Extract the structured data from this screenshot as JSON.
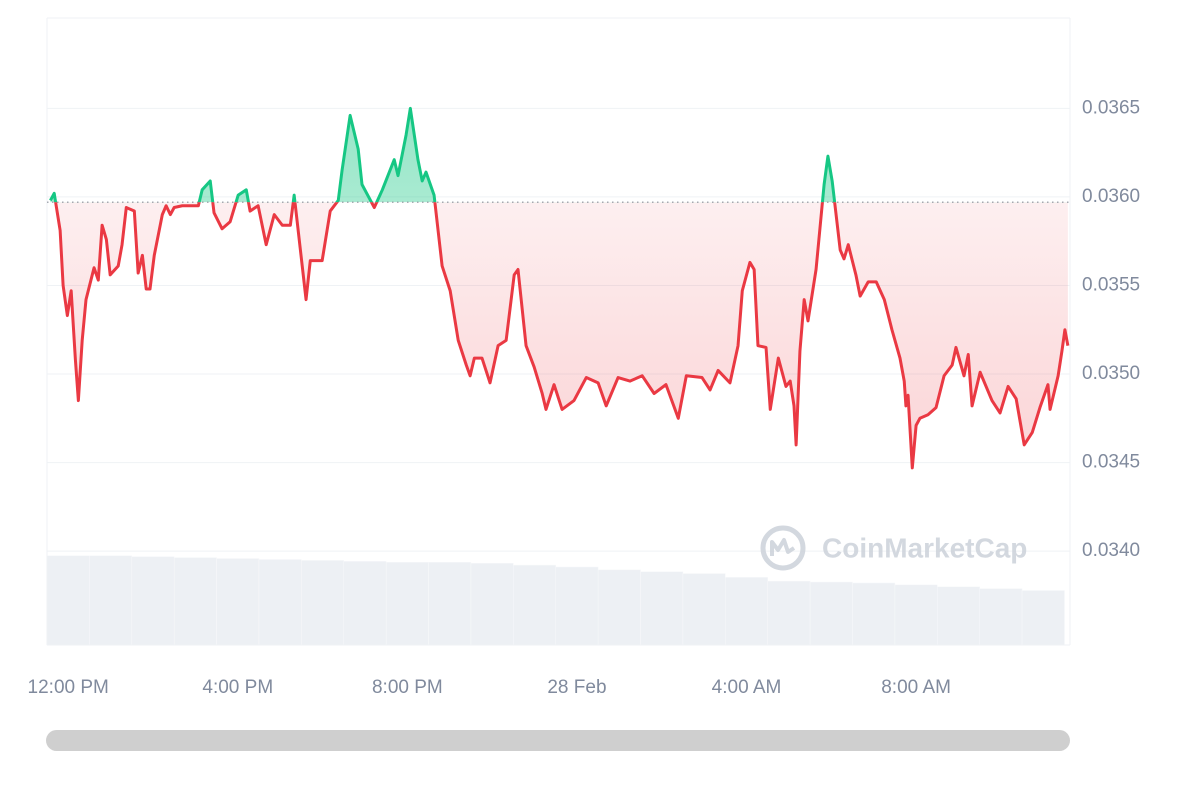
{
  "chart_data": {
    "type": "line",
    "watermark": "CoinMarketCap",
    "color_up": "#16c784",
    "color_down": "#ea3943",
    "baseline": 0.03597,
    "grid": true,
    "xlim": [
      -0.5,
      23.63
    ],
    "ylim": [
      0.03347,
      0.03701
    ],
    "xticks": [
      {
        "value": 0,
        "label": "12:00 PM"
      },
      {
        "value": 4,
        "label": "4:00 PM"
      },
      {
        "value": 8,
        "label": "8:00 PM"
      },
      {
        "value": 12,
        "label": "28 Feb"
      },
      {
        "value": 16,
        "label": "4:00 AM"
      },
      {
        "value": 20,
        "label": "8:00 AM"
      }
    ],
    "yticks": [
      {
        "value": 0.034,
        "label": "0.0340"
      },
      0.0345,
      {
        "value": 0.035,
        "label": "0.0350"
      },
      0.0355,
      {
        "value": 0.036,
        "label": "0.0360"
      },
      0.0365
    ],
    "x": [
      -0.42,
      -0.33,
      -0.19,
      -0.12,
      -0.02,
      0.07,
      0.17,
      0.24,
      0.33,
      0.42,
      0.61,
      0.71,
      0.8,
      0.9,
      0.99,
      1.18,
      1.27,
      1.37,
      1.56,
      1.65,
      1.75,
      1.84,
      1.93,
      2.03,
      2.22,
      2.31,
      2.41,
      2.5,
      2.69,
      2.88,
      3.07,
      3.16,
      3.35,
      3.44,
      3.63,
      3.82,
      4.01,
      4.2,
      4.29,
      4.48,
      4.67,
      4.86,
      5.05,
      5.24,
      5.33,
      5.52,
      5.61,
      5.71,
      5.99,
      6.18,
      6.37,
      6.46,
      6.65,
      6.84,
      6.93,
      7.22,
      7.41,
      7.69,
      7.78,
      7.97,
      8.07,
      8.25,
      8.35,
      8.44,
      8.63,
      8.82,
      9.01,
      9.2,
      9.39,
      9.48,
      9.58,
      9.76,
      9.95,
      10.14,
      10.33,
      10.52,
      10.61,
      10.8,
      10.99,
      11.18,
      11.27,
      11.46,
      11.65,
      11.93,
      12.22,
      12.5,
      12.69,
      12.97,
      13.25,
      13.54,
      13.82,
      14.1,
      14.39,
      14.58,
      14.95,
      15.14,
      15.33,
      15.61,
      15.8,
      15.9,
      16.08,
      16.18,
      16.27,
      16.46,
      16.56,
      16.75,
      16.93,
      17.03,
      17.12,
      17.17,
      17.26,
      17.36,
      17.45,
      17.64,
      17.83,
      17.92,
      18.02,
      18.21,
      18.3,
      18.4,
      18.58,
      18.68,
      18.87,
      19.06,
      19.25,
      19.43,
      19.62,
      19.72,
      19.76,
      19.81,
      19.91,
      20.0,
      20.09,
      20.28,
      20.47,
      20.66,
      20.85,
      20.94,
      21.13,
      21.23,
      21.32,
      21.51,
      21.79,
      21.98,
      22.17,
      22.36,
      22.55,
      22.74,
      22.92,
      23.11,
      23.16,
      23.35,
      23.44,
      23.51,
      23.58
    ],
    "values": [
      0.03598,
      0.03602,
      0.03581,
      0.0355,
      0.03533,
      0.03547,
      0.03508,
      0.03485,
      0.03519,
      0.03542,
      0.0356,
      0.03553,
      0.03584,
      0.03576,
      0.03556,
      0.03561,
      0.03573,
      0.03594,
      0.03592,
      0.03557,
      0.03567,
      0.03548,
      0.03548,
      0.03567,
      0.0359,
      0.03595,
      0.0359,
      0.03594,
      0.03595,
      0.03595,
      0.03595,
      0.03604,
      0.03609,
      0.03591,
      0.03582,
      0.03586,
      0.03601,
      0.03604,
      0.03592,
      0.03595,
      0.03573,
      0.0359,
      0.03584,
      0.03584,
      0.03601,
      0.03561,
      0.03542,
      0.03564,
      0.03564,
      0.03592,
      0.03598,
      0.03615,
      0.03646,
      0.03627,
      0.03607,
      0.03594,
      0.03604,
      0.03621,
      0.03612,
      0.03635,
      0.0365,
      0.03621,
      0.03609,
      0.03614,
      0.03601,
      0.03561,
      0.03547,
      0.03519,
      0.03505,
      0.03499,
      0.03509,
      0.03509,
      0.03495,
      0.03516,
      0.03519,
      0.03556,
      0.03559,
      0.03516,
      0.03504,
      0.03489,
      0.0348,
      0.03494,
      0.0348,
      0.03485,
      0.03498,
      0.03495,
      0.03482,
      0.03498,
      0.03496,
      0.03499,
      0.03489,
      0.03494,
      0.03475,
      0.03499,
      0.03498,
      0.03491,
      0.03502,
      0.03495,
      0.03516,
      0.03547,
      0.03563,
      0.03559,
      0.03516,
      0.03515,
      0.0348,
      0.03509,
      0.03493,
      0.03496,
      0.03482,
      0.0346,
      0.03513,
      0.03542,
      0.0353,
      0.03559,
      0.03607,
      0.03623,
      0.03609,
      0.0357,
      0.03565,
      0.03573,
      0.03556,
      0.03544,
      0.03552,
      0.03552,
      0.03542,
      0.03525,
      0.03509,
      0.03496,
      0.03482,
      0.03488,
      0.03447,
      0.03471,
      0.03475,
      0.03477,
      0.03481,
      0.03499,
      0.03505,
      0.03515,
      0.03499,
      0.03511,
      0.03482,
      0.03501,
      0.03485,
      0.03478,
      0.03493,
      0.03486,
      0.0346,
      0.03467,
      0.03481,
      0.03494,
      0.0348,
      0.03499,
      0.03513,
      0.03525,
      0.03516
    ],
    "volume": {
      "color": "#edf0f4",
      "ylim": [
        0,
        100
      ],
      "x": [
        -0.5,
        0.5,
        1.5,
        2.5,
        3.5,
        4.5,
        5.5,
        6.5,
        7.5,
        8.5,
        9.5,
        10.5,
        11.5,
        12.5,
        13.5,
        14.5,
        15.5,
        16.5,
        17.5,
        18.5,
        19.5,
        20.5,
        21.5,
        22.5
      ],
      "values": [
        95,
        95,
        94,
        93,
        92,
        91,
        90,
        89,
        88,
        88,
        87,
        85,
        83,
        80,
        78,
        76,
        72,
        68,
        67,
        66,
        64,
        62,
        60,
        58
      ]
    }
  }
}
